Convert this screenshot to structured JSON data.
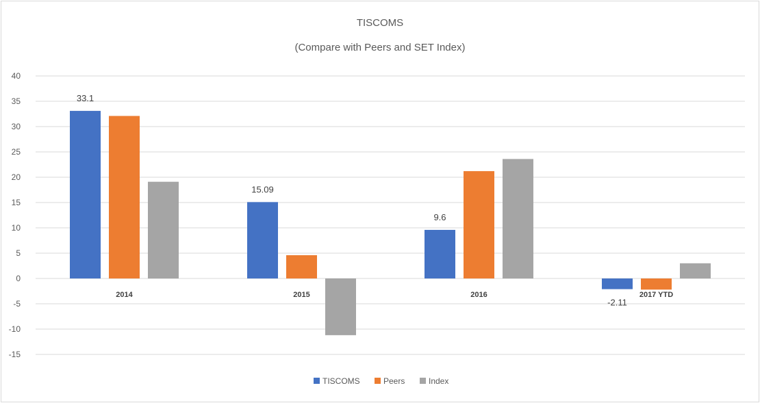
{
  "chart_data": {
    "type": "bar",
    "title": "TISCOMS",
    "subtitle": "(Compare with Peers and SET Index)",
    "xlabel": "",
    "ylabel": "",
    "ylim": [
      -15,
      40
    ],
    "yticks": [
      40,
      35,
      30,
      25,
      20,
      15,
      10,
      5,
      0,
      -5,
      -10,
      -15
    ],
    "grid": true,
    "legend_position": "bottom",
    "categories": [
      "2014",
      "2015",
      "2016",
      "2017 YTD"
    ],
    "series": [
      {
        "name": "TISCOMS",
        "color": "#4472c4",
        "values": [
          33.1,
          15.09,
          9.6,
          -2.11
        ],
        "data_labels": [
          "33.1",
          "15.09",
          "9.6",
          "-2.11"
        ]
      },
      {
        "name": "Peers",
        "color": "#ed7d31",
        "values": [
          32.1,
          4.6,
          21.2,
          -2.2
        ]
      },
      {
        "name": "Index",
        "color": "#a5a5a5",
        "values": [
          19.1,
          -11.2,
          23.6,
          3.0
        ]
      }
    ]
  }
}
